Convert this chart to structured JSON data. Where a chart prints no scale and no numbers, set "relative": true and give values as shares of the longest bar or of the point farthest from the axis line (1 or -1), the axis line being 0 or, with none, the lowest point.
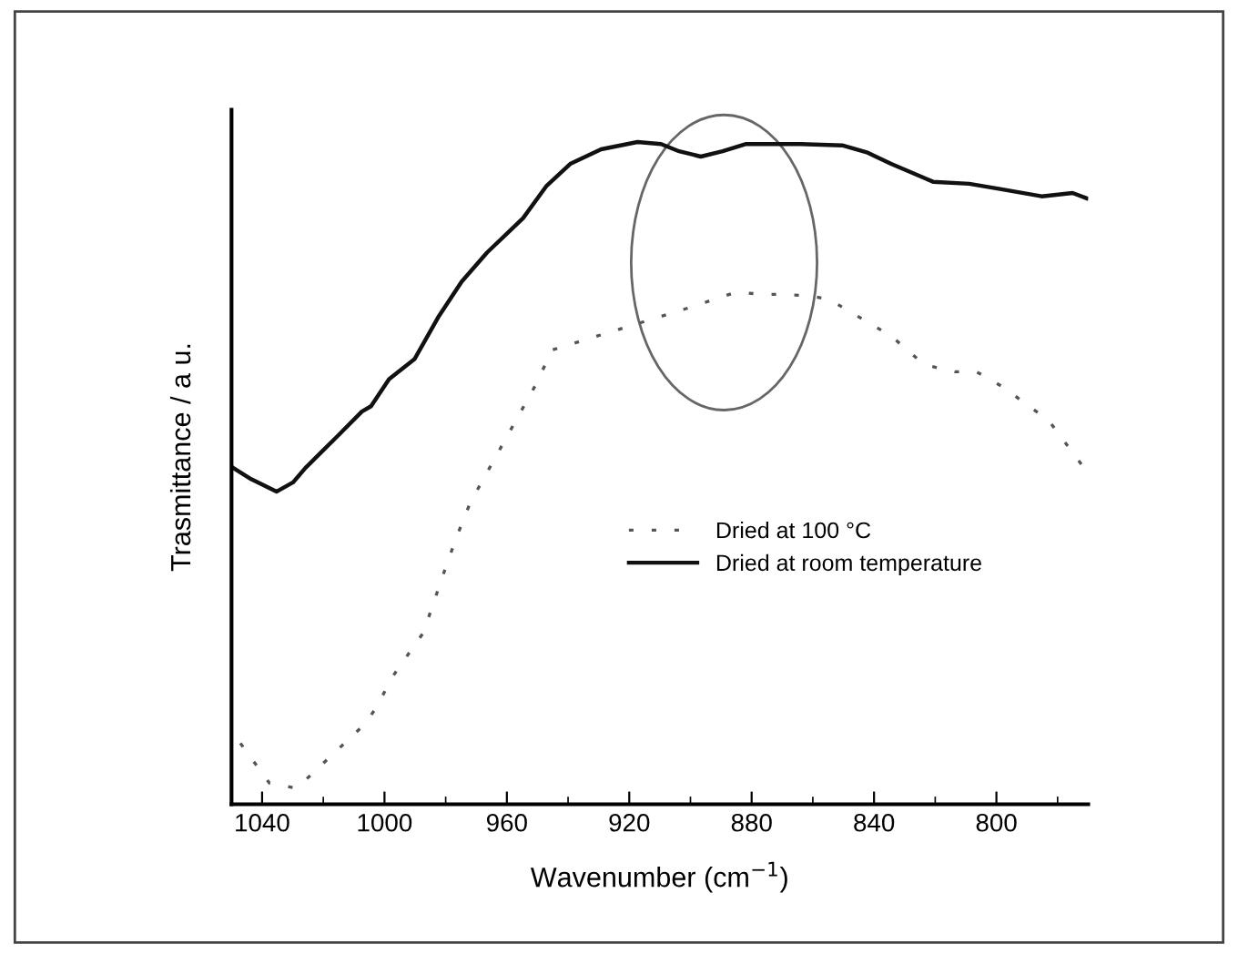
{
  "chart_data": {
    "type": "line",
    "relative": true,
    "xlabel": "Wavenumber (cm$^{−1}$)",
    "ylabel": "Trasmittance / a u.",
    "xlim": [
      1050,
      770
    ],
    "xticks": [
      1040,
      1000,
      960,
      920,
      880,
      840,
      800
    ],
    "legend": "right",
    "grid": false,
    "series": [
      {
        "name": "Dried at 100 °C",
        "color": "#555555",
        "line_style": "dotted",
        "x": [
          1047.1,
          1037.6,
          1028.7,
          1019.3,
          1006.2,
          1002.7,
          997.3,
          987.3,
          979.0,
          974.8,
          971.9,
          950.5,
          945.2,
          899.6,
          885.3,
          875.9,
          871.7,
          861.0,
          854.5,
          834.4,
          828.4,
          823.7,
          813.6,
          806.5,
          798.2,
          782.8,
          770.9
        ],
        "values": [
          0.092,
          0.032,
          0.024,
          0.065,
          0.122,
          0.146,
          0.193,
          0.259,
          0.371,
          0.423,
          0.456,
          0.634,
          0.686,
          0.751,
          0.773,
          0.77,
          0.77,
          0.768,
          0.762,
          0.707,
          0.683,
          0.664,
          0.653,
          0.653,
          0.631,
          0.579,
          0.505
        ]
      },
      {
        "name": "Dried at room temperature",
        "color": "#111111",
        "line_style": "solid",
        "x": [
          1049.5,
          1043.6,
          1035.3,
          1029.9,
          1025.8,
          1021.0,
          1015.1,
          1007.4,
          1004.4,
          998.5,
          990.2,
          982.5,
          974.8,
          966.5,
          954.7,
          947.0,
          939.3,
          929.2,
          917.3,
          909.6,
          903.7,
          896.6,
          889.5,
          881.8,
          864.0,
          850.4,
          842.1,
          834.4,
          820.7,
          808.9,
          798.8,
          785.2,
          775.1,
          770.5
        ],
        "values": [
          0.508,
          0.491,
          0.472,
          0.486,
          0.508,
          0.53,
          0.557,
          0.593,
          0.601,
          0.642,
          0.672,
          0.735,
          0.789,
          0.833,
          0.885,
          0.934,
          0.967,
          0.989,
          1.0,
          0.997,
          0.986,
          0.978,
          0.986,
          0.997,
          0.997,
          0.995,
          0.984,
          0.967,
          0.94,
          0.937,
          0.929,
          0.918,
          0.923,
          0.915
        ]
      }
    ]
  }
}
